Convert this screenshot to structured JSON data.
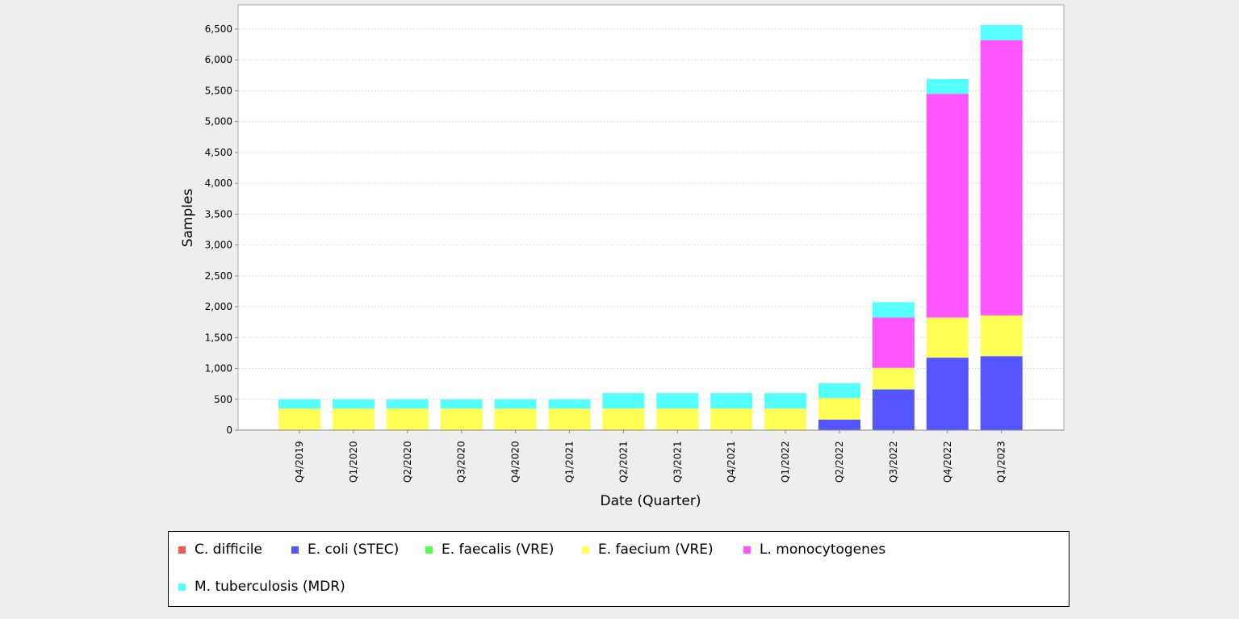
{
  "chart_data": {
    "type": "bar",
    "stacked": true,
    "title": "",
    "xlabel": "Date (Quarter)",
    "ylabel": "Samples",
    "ylim": [
      0,
      6900
    ],
    "yticks": [
      0,
      500,
      1000,
      1500,
      2000,
      2500,
      3000,
      3500,
      4000,
      4500,
      5000,
      5500,
      6000,
      6500
    ],
    "ytick_labels": [
      "0",
      "500",
      "1,000",
      "1,500",
      "2,000",
      "2,500",
      "3,000",
      "3,500",
      "4,000",
      "4,500",
      "5,000",
      "5,500",
      "6,000",
      "6,500"
    ],
    "grid": true,
    "legend_placement": "bottom",
    "categories": [
      "Q4/2019",
      "Q1/2020",
      "Q2/2020",
      "Q3/2020",
      "Q4/2020",
      "Q1/2021",
      "Q2/2021",
      "Q3/2021",
      "Q4/2021",
      "Q1/2022",
      "Q2/2022",
      "Q3/2022",
      "Q4/2022",
      "Q1/2023"
    ],
    "series": [
      {
        "name": "C. difficile",
        "color": "#ff5555",
        "values": [
          0,
          0,
          0,
          0,
          0,
          0,
          0,
          0,
          0,
          0,
          0,
          0,
          0,
          0
        ]
      },
      {
        "name": "E. coli (STEC)",
        "color": "#5555ff",
        "values": [
          0,
          0,
          0,
          0,
          0,
          0,
          0,
          0,
          0,
          0,
          170,
          660,
          1175,
          1200
        ]
      },
      {
        "name": "E. faecalis (VRE)",
        "color": "#55ff55",
        "values": [
          0,
          0,
          0,
          0,
          0,
          0,
          0,
          0,
          0,
          0,
          0,
          0,
          0,
          0
        ]
      },
      {
        "name": "E. faecium (VRE)",
        "color": "#ffff55",
        "values": [
          350,
          350,
          350,
          350,
          350,
          350,
          350,
          350,
          350,
          350,
          350,
          350,
          650,
          660
        ]
      },
      {
        "name": "L. monocytogenes",
        "color": "#ff55ff",
        "values": [
          0,
          0,
          0,
          0,
          0,
          0,
          0,
          0,
          0,
          0,
          0,
          815,
          3625,
          4460
        ]
      },
      {
        "name": "M. tuberculosis (MDR)",
        "color": "#55ffff",
        "values": [
          150,
          150,
          150,
          150,
          150,
          150,
          250,
          250,
          250,
          250,
          240,
          250,
          240,
          245
        ]
      }
    ]
  }
}
